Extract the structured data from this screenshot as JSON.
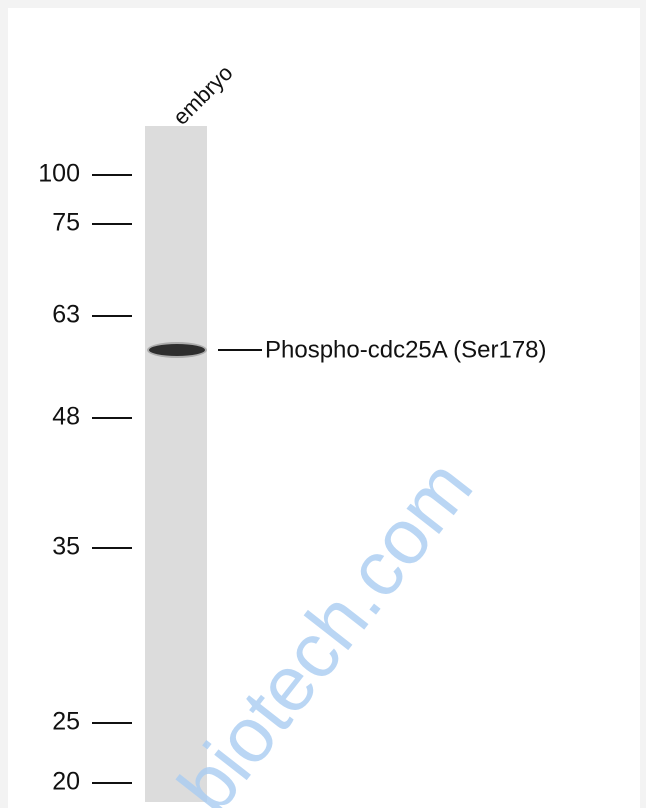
{
  "lane_label": "embryo",
  "markers": [
    "100",
    "75",
    "63",
    "48",
    "35",
    "25",
    "20"
  ],
  "band_label": "Phospho-cdc25A (Ser178)",
  "watermark": "biotech.com"
}
